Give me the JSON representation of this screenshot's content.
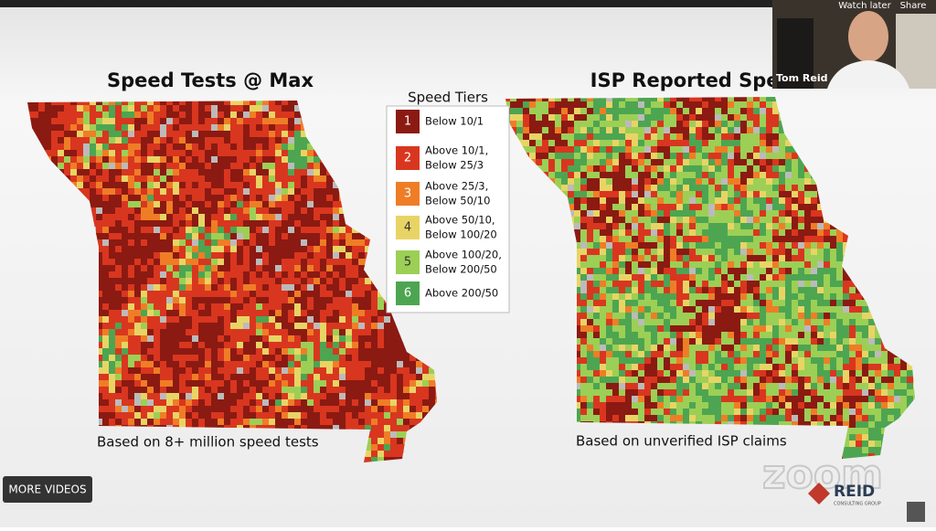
{
  "slide": {
    "left_title": "Speed Tests @ Max",
    "right_title": "ISP Reported Speeds",
    "left_caption": "Based on 8+ million speed tests",
    "right_caption": "Based on unverified ISP claims",
    "legend": {
      "title": "Speed Tiers",
      "tiers": [
        {
          "number": 1,
          "label": "Below 10/1",
          "color": "#8b1a12"
        },
        {
          "number": 2,
          "label": "Above 10/1, Below 25/3",
          "color": "#d9361f"
        },
        {
          "number": 3,
          "label": "Above 25/3, Below 50/10",
          "color": "#ef7d26"
        },
        {
          "number": 4,
          "label": "Above 50/10, Below 100/20",
          "color": "#e8d465"
        },
        {
          "number": 5,
          "label": "Above 100/20, Below 200/50",
          "color": "#9ccf55"
        },
        {
          "number": 6,
          "label": "Above 200/50",
          "color": "#4da551"
        }
      ]
    },
    "watermark": "zoom",
    "logo": {
      "name": "REID",
      "sub": "CONSULTING GROUP"
    }
  },
  "player": {
    "watch_later": "Watch later",
    "share": "Share",
    "speaker": "Tom Reid",
    "more_videos": "MORE VIDEOS"
  }
}
